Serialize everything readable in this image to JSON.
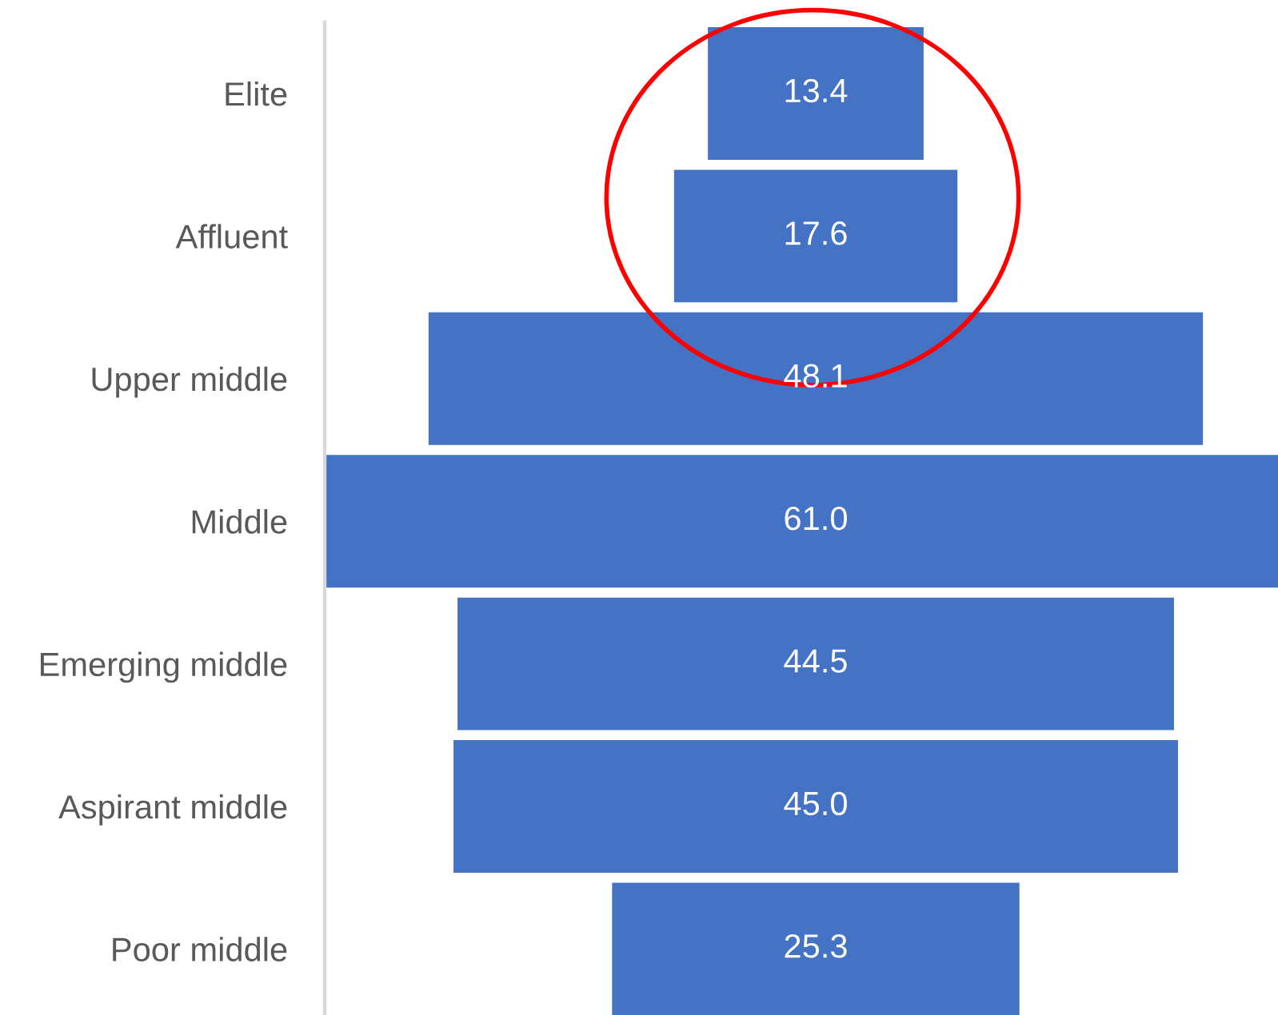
{
  "chart_data": {
    "type": "other",
    "categories": [
      "Elite",
      "Affluent",
      "Upper middle",
      "Middle",
      "Emerging middle",
      "Aspirant middle",
      "Poor middle"
    ],
    "values": [
      13.4,
      17.6,
      48.1,
      61.0,
      44.5,
      45.0,
      25.3
    ],
    "value_labels": [
      "13.4",
      "17.6",
      "48.1",
      "61.0",
      "44.5",
      "45.0",
      "25.3"
    ],
    "color": "#4472c4"
  }
}
